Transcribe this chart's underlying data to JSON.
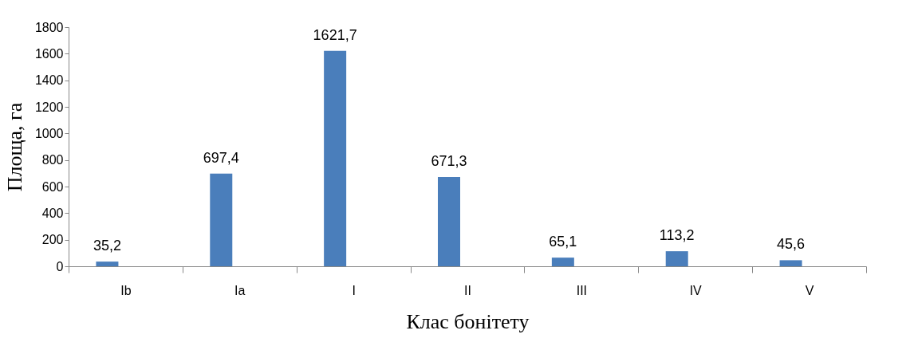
{
  "chart_data": {
    "type": "bar",
    "xlabel": "Клас бонітету",
    "ylabel": "Площа, га",
    "categories": [
      "Ib",
      "Ia",
      "I",
      "II",
      "III",
      "IV",
      "V"
    ],
    "values": [
      35.2,
      697.4,
      1621.7,
      671.3,
      65.1,
      113.2,
      45.6
    ],
    "value_labels": [
      "35,2",
      "697,4",
      "1621,7",
      "671,3",
      "65,1",
      "113,2",
      "45,6"
    ],
    "color": "#4a7ebb",
    "ylim": [
      0,
      1800
    ],
    "yticks": [
      0,
      200,
      400,
      600,
      800,
      1000,
      1200,
      1400,
      1600,
      1800
    ],
    "grid": false
  }
}
